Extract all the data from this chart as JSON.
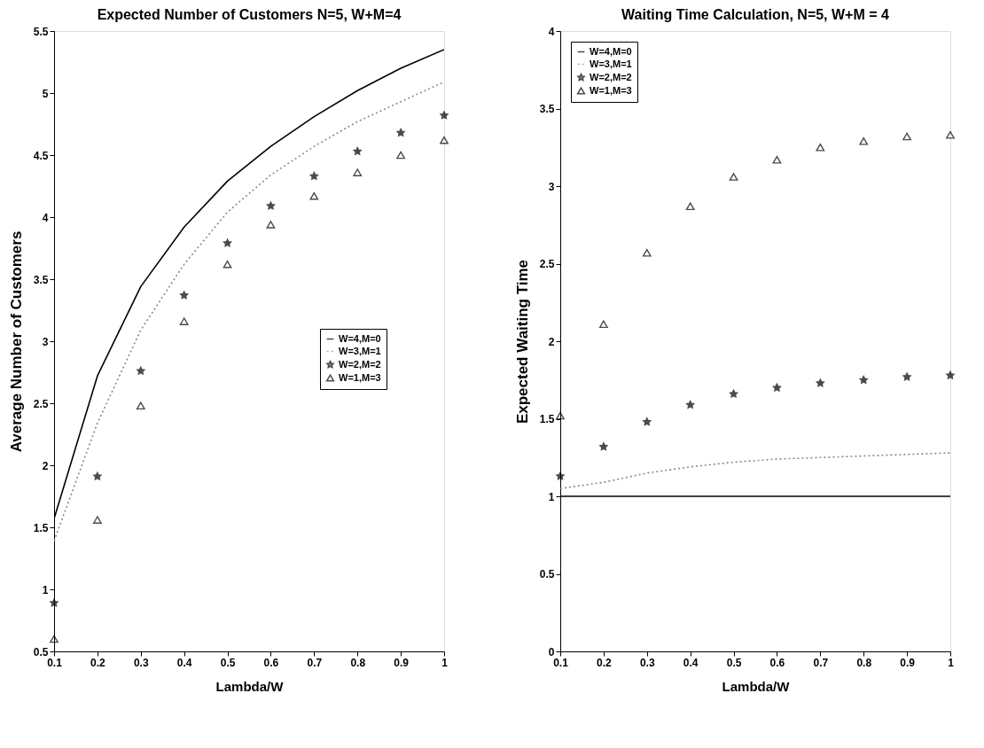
{
  "chart_data": [
    {
      "type": "line",
      "title": "Expected Number of Customers N=5, W+M=4",
      "xlabel": "Lambda/W",
      "ylabel": "Average Number of Customers",
      "x": [
        0.1,
        0.2,
        0.3,
        0.4,
        0.5,
        0.6,
        0.7,
        0.8,
        0.9,
        1
      ],
      "xlim": [
        0.1,
        1
      ],
      "xticks": [
        0.1,
        0.2,
        0.3,
        0.4,
        0.5,
        0.6,
        0.7,
        0.8,
        0.9,
        1
      ],
      "ylim": [
        0.5,
        5.5
      ],
      "yticks": [
        0.5,
        1,
        1.5,
        2,
        2.5,
        3,
        3.5,
        4,
        4.5,
        5,
        5.5
      ],
      "grid": false,
      "legend": "right",
      "series": [
        {
          "name": "W=4,M=0",
          "line_style": "solid",
          "marker": "none",
          "color": "#000000",
          "values": [
            1.57,
            2.72,
            3.44,
            3.92,
            4.29,
            4.57,
            4.81,
            5.02,
            5.2,
            5.35
          ]
        },
        {
          "name": "W=3,M=1",
          "line_style": "dotted",
          "marker": "none",
          "color": "#888888",
          "values": [
            1.39,
            2.34,
            3.09,
            3.62,
            4.04,
            4.34,
            4.57,
            4.77,
            4.93,
            5.09
          ]
        },
        {
          "name": "W=2,M=2",
          "type": "scatter",
          "marker": "star",
          "color": "#000000",
          "values": [
            0.89,
            1.91,
            2.76,
            3.37,
            3.79,
            4.09,
            4.33,
            4.53,
            4.68,
            4.82
          ]
        },
        {
          "name": "W=1,M=3",
          "type": "scatter",
          "marker": "triangle",
          "color": "#000000",
          "values": [
            0.6,
            1.56,
            2.48,
            3.16,
            3.62,
            3.94,
            4.17,
            4.36,
            4.5,
            4.62
          ]
        }
      ]
    },
    {
      "type": "line",
      "title": "Waiting Time Calculation, N=5, W+M = 4",
      "xlabel": "Lambda/W",
      "ylabel": "Expected Waiting Time",
      "x": [
        0.1,
        0.2,
        0.3,
        0.4,
        0.5,
        0.6,
        0.7,
        0.8,
        0.9,
        1
      ],
      "xlim": [
        0.1,
        1
      ],
      "xticks": [
        0.1,
        0.2,
        0.3,
        0.4,
        0.5,
        0.6,
        0.7,
        0.8,
        0.9,
        1
      ],
      "ylim": [
        0,
        4
      ],
      "yticks": [
        0,
        0.5,
        1,
        1.5,
        2,
        2.5,
        3,
        3.5,
        4
      ],
      "grid": false,
      "legend": "top left",
      "series": [
        {
          "name": "W=4,M=0",
          "line_style": "solid",
          "marker": "none",
          "color": "#000000",
          "values": [
            1,
            1,
            1,
            1,
            1,
            1,
            1,
            1,
            1,
            1
          ]
        },
        {
          "name": "W=3,M=1",
          "line_style": "dotted",
          "marker": "none",
          "color": "#888888",
          "values": [
            1.05,
            1.09,
            1.15,
            1.19,
            1.22,
            1.24,
            1.25,
            1.26,
            1.27,
            1.28
          ]
        },
        {
          "name": "W=2,M=2",
          "type": "scatter",
          "marker": "star",
          "color": "#000000",
          "values": [
            1.13,
            1.32,
            1.48,
            1.59,
            1.66,
            1.7,
            1.73,
            1.75,
            1.77,
            1.78
          ]
        },
        {
          "name": "W=1,M=3",
          "type": "scatter",
          "marker": "triangle",
          "color": "#000000",
          "values": [
            1.52,
            2.11,
            2.57,
            2.87,
            3.06,
            3.17,
            3.25,
            3.29,
            3.32,
            3.33
          ]
        }
      ]
    }
  ]
}
